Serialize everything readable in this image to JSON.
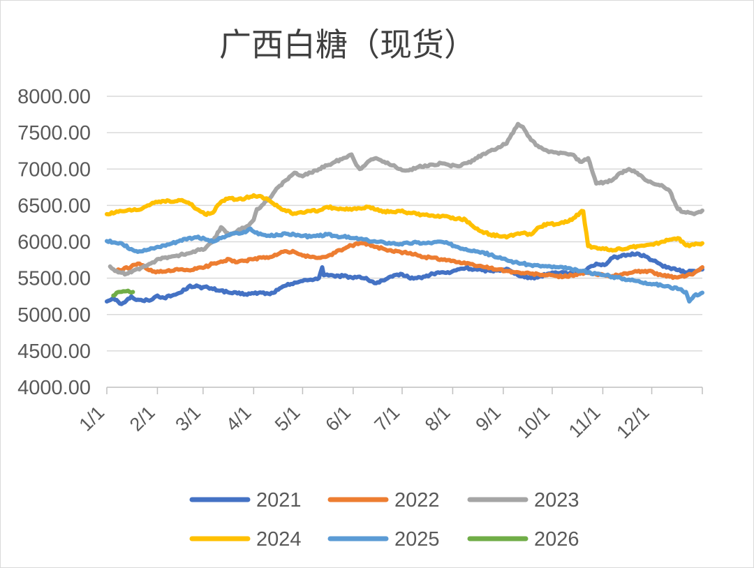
{
  "chart_data": {
    "type": "line",
    "title": "广西白糖（现货）",
    "xlabel": "",
    "ylabel": "",
    "ylim": [
      4000,
      8000
    ],
    "ytick_labels": [
      "4000.00",
      "4500.00",
      "5000.00",
      "5500.00",
      "6000.00",
      "6500.00",
      "7000.00",
      "7500.00",
      "8000.00"
    ],
    "ytick_values": [
      4000,
      4500,
      5000,
      5500,
      6000,
      6500,
      7000,
      7500,
      8000
    ],
    "x_range_days": [
      0,
      365
    ],
    "xtick_labels": [
      "1/1",
      "2/1",
      "3/1",
      "4/1",
      "5/1",
      "6/1",
      "7/1",
      "8/1",
      "9/1",
      "10/1",
      "11/1",
      "12/1"
    ],
    "xtick_days": [
      0,
      31,
      59,
      90,
      120,
      151,
      181,
      212,
      243,
      273,
      304,
      334
    ],
    "grid": true,
    "legend_position": "bottom",
    "series": [
      {
        "name": "2021",
        "color": "#4472c4",
        "x": [
          0,
          4,
          6,
          8,
          10,
          12,
          15,
          18,
          22,
          28,
          31,
          35,
          40,
          45,
          50,
          55,
          58,
          60,
          65,
          70,
          75,
          80,
          85,
          90,
          95,
          100,
          105,
          110,
          115,
          120,
          125,
          130,
          132,
          133,
          135,
          140,
          145,
          150,
          155,
          160,
          165,
          170,
          175,
          180,
          185,
          190,
          195,
          200,
          205,
          210,
          215,
          220,
          225,
          230,
          235,
          240,
          245,
          250,
          255,
          260,
          265,
          270,
          275,
          280,
          285,
          290,
          295,
          300,
          305,
          310,
          315,
          320,
          325,
          330,
          335,
          340,
          345,
          350,
          355,
          360,
          365
        ],
        "values": [
          5180,
          5230,
          5200,
          5150,
          5160,
          5190,
          5250,
          5200,
          5190,
          5210,
          5260,
          5230,
          5260,
          5300,
          5380,
          5400,
          5360,
          5380,
          5350,
          5330,
          5300,
          5290,
          5280,
          5290,
          5300,
          5280,
          5340,
          5400,
          5440,
          5460,
          5480,
          5500,
          5650,
          5540,
          5550,
          5520,
          5530,
          5510,
          5520,
          5480,
          5430,
          5470,
          5520,
          5560,
          5510,
          5500,
          5520,
          5560,
          5580,
          5570,
          5620,
          5640,
          5620,
          5610,
          5600,
          5610,
          5630,
          5560,
          5530,
          5500,
          5520,
          5560,
          5580,
          5580,
          5560,
          5560,
          5640,
          5700,
          5680,
          5780,
          5800,
          5820,
          5840,
          5800,
          5740,
          5680,
          5640,
          5610,
          5580,
          5600,
          5620
        ]
      },
      {
        "name": "2022",
        "color": "#ed7d31",
        "x": [
          5,
          10,
          15,
          20,
          25,
          30,
          35,
          40,
          45,
          50,
          55,
          60,
          65,
          70,
          75,
          80,
          85,
          90,
          95,
          100,
          105,
          110,
          115,
          120,
          125,
          130,
          135,
          140,
          145,
          150,
          155,
          160,
          165,
          170,
          175,
          180,
          185,
          190,
          195,
          200,
          205,
          210,
          215,
          220,
          225,
          230,
          235,
          240,
          245,
          250,
          255,
          260,
          265,
          270,
          275,
          280,
          285,
          290,
          295,
          300,
          305,
          310,
          315,
          320,
          325,
          330,
          335,
          340,
          345,
          350,
          355,
          360,
          365
        ],
        "values": [
          5600,
          5620,
          5660,
          5700,
          5620,
          5580,
          5590,
          5600,
          5620,
          5610,
          5630,
          5650,
          5700,
          5730,
          5760,
          5720,
          5740,
          5760,
          5780,
          5790,
          5830,
          5870,
          5860,
          5810,
          5790,
          5780,
          5800,
          5850,
          5900,
          5950,
          5980,
          5970,
          5930,
          5900,
          5870,
          5860,
          5840,
          5820,
          5790,
          5780,
          5760,
          5750,
          5720,
          5700,
          5680,
          5660,
          5640,
          5620,
          5600,
          5580,
          5570,
          5560,
          5550,
          5540,
          5530,
          5520,
          5540,
          5560,
          5570,
          5550,
          5540,
          5530,
          5550,
          5570,
          5590,
          5600,
          5580,
          5540,
          5520,
          5510,
          5530,
          5570,
          5650
        ]
      },
      {
        "name": "2023",
        "color": "#a5a5a5",
        "x": [
          2,
          5,
          8,
          12,
          16,
          20,
          25,
          30,
          35,
          40,
          45,
          50,
          55,
          60,
          65,
          70,
          75,
          80,
          85,
          90,
          92,
          95,
          100,
          105,
          110,
          115,
          120,
          125,
          130,
          135,
          140,
          145,
          150,
          152,
          155,
          160,
          165,
          170,
          175,
          180,
          185,
          190,
          195,
          200,
          205,
          210,
          215,
          220,
          225,
          230,
          235,
          240,
          245,
          250,
          252,
          255,
          260,
          265,
          270,
          275,
          280,
          285,
          290,
          295,
          300,
          305,
          310,
          315,
          320,
          325,
          330,
          335,
          340,
          345,
          350,
          355,
          360,
          365
        ],
        "values": [
          5660,
          5600,
          5580,
          5560,
          5600,
          5620,
          5680,
          5740,
          5780,
          5800,
          5820,
          5840,
          5880,
          5900,
          6000,
          6200,
          6100,
          6150,
          6200,
          6300,
          6450,
          6500,
          6600,
          6750,
          6850,
          6950,
          6900,
          6950,
          7000,
          7050,
          7100,
          7150,
          7200,
          7100,
          7000,
          7100,
          7150,
          7100,
          7050,
          7000,
          6980,
          7020,
          7050,
          7060,
          7080,
          7050,
          7040,
          7080,
          7120,
          7200,
          7250,
          7300,
          7350,
          7550,
          7620,
          7580,
          7400,
          7300,
          7250,
          7230,
          7220,
          7200,
          7100,
          7150,
          6800,
          6820,
          6850,
          6950,
          7000,
          6950,
          6850,
          6800,
          6780,
          6700,
          6450,
          6400,
          6380,
          6430
        ]
      },
      {
        "name": "2024",
        "color": "#ffc000",
        "x": [
          0,
          5,
          10,
          15,
          20,
          25,
          30,
          35,
          40,
          45,
          50,
          55,
          60,
          65,
          70,
          75,
          80,
          85,
          88,
          90,
          95,
          100,
          105,
          110,
          115,
          120,
          125,
          130,
          135,
          140,
          145,
          150,
          155,
          160,
          165,
          170,
          175,
          180,
          185,
          190,
          195,
          200,
          205,
          210,
          215,
          220,
          225,
          230,
          235,
          240,
          245,
          250,
          255,
          260,
          265,
          270,
          275,
          280,
          285,
          290,
          292,
          295,
          300,
          305,
          310,
          315,
          320,
          325,
          330,
          335,
          340,
          345,
          350,
          355,
          360,
          365
        ],
        "values": [
          6380,
          6400,
          6420,
          6430,
          6440,
          6500,
          6550,
          6560,
          6550,
          6570,
          6540,
          6450,
          6380,
          6400,
          6550,
          6600,
          6580,
          6600,
          6620,
          6640,
          6620,
          6560,
          6480,
          6420,
          6390,
          6400,
          6420,
          6430,
          6480,
          6460,
          6450,
          6440,
          6460,
          6480,
          6440,
          6420,
          6410,
          6420,
          6400,
          6380,
          6370,
          6360,
          6350,
          6340,
          6320,
          6300,
          6200,
          6140,
          6100,
          6080,
          6060,
          6100,
          6120,
          6100,
          6200,
          6250,
          6240,
          6260,
          6300,
          6400,
          6420,
          5940,
          5920,
          5900,
          5880,
          5900,
          5920,
          5940,
          5950,
          5960,
          6000,
          6030,
          6050,
          5950,
          5960,
          5980
        ]
      },
      {
        "name": "2025",
        "color": "#5b9bd5",
        "x": [
          0,
          5,
          10,
          15,
          20,
          25,
          30,
          35,
          40,
          45,
          50,
          55,
          60,
          65,
          70,
          75,
          80,
          85,
          88,
          90,
          95,
          100,
          105,
          110,
          115,
          120,
          125,
          130,
          135,
          140,
          145,
          150,
          155,
          160,
          165,
          170,
          175,
          180,
          185,
          190,
          195,
          200,
          205,
          210,
          215,
          220,
          225,
          230,
          235,
          240,
          245,
          250,
          255,
          260,
          265,
          270,
          275,
          280,
          285,
          290,
          295,
          300,
          305,
          310,
          315,
          320,
          325,
          330,
          335,
          340,
          345,
          350,
          355,
          357,
          360,
          365
        ],
        "values": [
          6010,
          5990,
          5960,
          5900,
          5870,
          5890,
          5920,
          5950,
          5980,
          6020,
          6050,
          6060,
          6040,
          6000,
          6050,
          6090,
          6120,
          6130,
          6180,
          6140,
          6100,
          6080,
          6090,
          6110,
          6100,
          6080,
          6070,
          6080,
          6100,
          6080,
          6070,
          6050,
          6040,
          6020,
          6000,
          5990,
          5980,
          5970,
          5980,
          5990,
          5980,
          5990,
          6000,
          5970,
          5930,
          5900,
          5880,
          5860,
          5820,
          5780,
          5750,
          5720,
          5700,
          5680,
          5670,
          5660,
          5650,
          5640,
          5620,
          5600,
          5580,
          5560,
          5540,
          5520,
          5500,
          5480,
          5460,
          5440,
          5420,
          5400,
          5380,
          5350,
          5310,
          5180,
          5260,
          5300
        ]
      },
      {
        "name": "2026",
        "color": "#70ad47",
        "x": [
          4,
          6,
          8,
          10,
          12,
          14,
          16
        ],
        "values": [
          5260,
          5300,
          5310,
          5320,
          5320,
          5310,
          5310
        ]
      }
    ]
  }
}
